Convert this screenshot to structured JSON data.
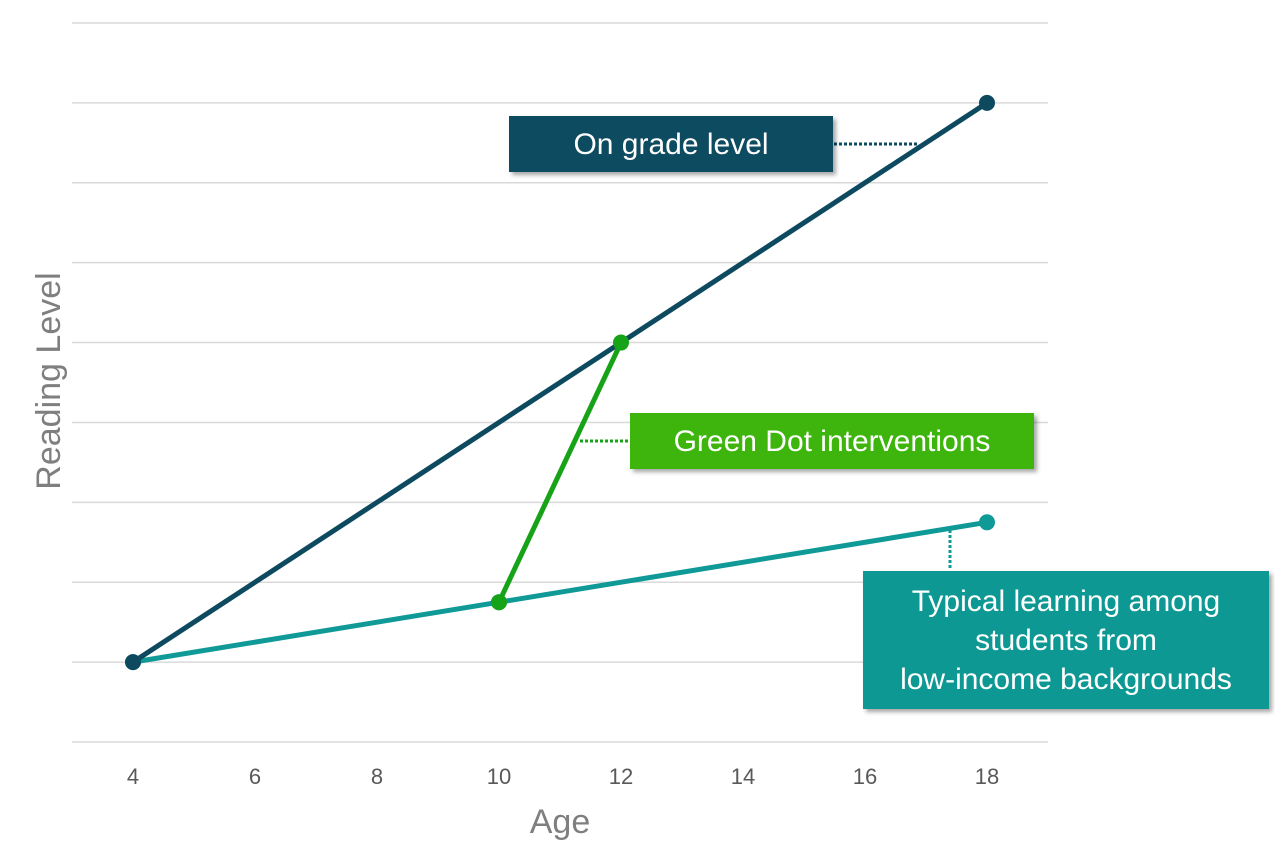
{
  "chart_data": {
    "type": "line",
    "xlabel": "Age",
    "ylabel": "Reading Level",
    "xlim": [
      3,
      19
    ],
    "ylim": [
      -1,
      8
    ],
    "x_ticks": [
      4,
      6,
      8,
      10,
      12,
      14,
      16,
      18
    ],
    "y_tick_labels_shown": false,
    "y_gridlines": [
      -1,
      0,
      1,
      2,
      3,
      4,
      5,
      6,
      7,
      8
    ],
    "grid": true,
    "series": [
      {
        "id": "on_grade",
        "color": "#0d4a5f",
        "points": [
          [
            4,
            0
          ],
          [
            18,
            7
          ]
        ]
      },
      {
        "id": "typical",
        "color": "#0f9997",
        "points": [
          [
            4,
            0
          ],
          [
            10,
            0.75
          ],
          [
            18,
            1.75
          ]
        ]
      },
      {
        "id": "green_dot",
        "color": "#17a317",
        "points": [
          [
            10,
            0.75
          ],
          [
            12,
            4
          ]
        ]
      }
    ],
    "annotations": [
      {
        "id": "on_grade",
        "text_lines": [
          "On grade level"
        ],
        "bg": "#0a4b60"
      },
      {
        "id": "green_dot",
        "text_lines": [
          "Green Dot interventions"
        ],
        "bg": "#3cb510"
      },
      {
        "id": "typical",
        "text_lines": [
          "Typical learning among",
          "students from",
          "low-income backgrounds"
        ],
        "bg": "#0c9894"
      }
    ]
  }
}
